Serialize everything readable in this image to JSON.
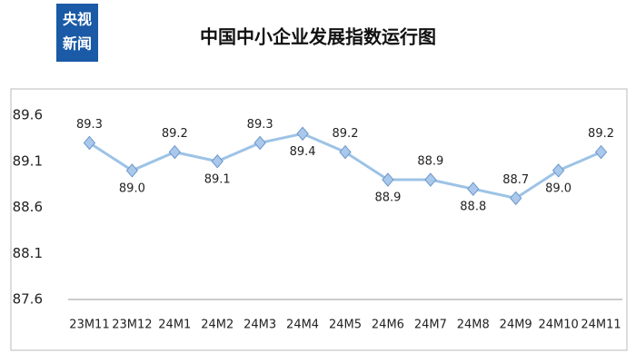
{
  "logo": [
    "央视",
    "新闻"
  ],
  "chart_data": {
    "type": "line",
    "title": "中国中小企业发展指数运行图",
    "categories": [
      "23M11",
      "23M12",
      "24M1",
      "24M2",
      "24M3",
      "24M4",
      "24M5",
      "24M6",
      "24M7",
      "24M8",
      "24M9",
      "24M10",
      "24M11"
    ],
    "values": [
      89.3,
      89.0,
      89.2,
      89.1,
      89.3,
      89.4,
      89.2,
      88.9,
      88.9,
      88.8,
      88.7,
      89.0,
      89.2
    ],
    "value_labels": [
      "89.3",
      "89.0",
      "89.2",
      "89.1",
      "89.3",
      "89.4",
      "89.2",
      "88.9",
      "88.9",
      "88.8",
      "88.7",
      "89.0",
      "89.2"
    ],
    "color": "#9dc3e6",
    "ylim": [
      87.6,
      89.6
    ],
    "yticks": [
      87.6,
      88.1,
      88.6,
      89.1,
      89.6
    ],
    "grid": false
  }
}
